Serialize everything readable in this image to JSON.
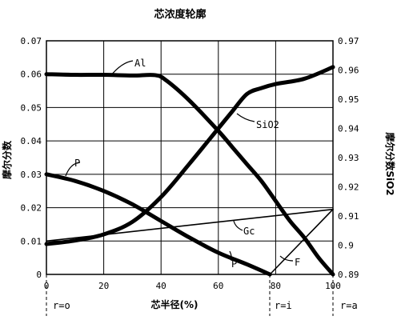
{
  "chart_data": {
    "type": "line",
    "title": "芯浓度轮廓",
    "xlabel": "芯半径(%)",
    "ylabel": "摩尔分数",
    "ylabel_right": "摩尔分数SiO2",
    "xlim": [
      0,
      100
    ],
    "ylim": [
      0,
      0.07
    ],
    "ylim_right": [
      0.89,
      0.97
    ],
    "x_ticks": [
      "0",
      "20",
      "40",
      "60",
      "80",
      "100"
    ],
    "y_ticks": [
      "0",
      "0.01",
      "0.02",
      "0.03",
      "0.04",
      "0.05",
      "0.06",
      "0.07"
    ],
    "y_ticks_right": [
      "0.89",
      "0.9",
      "0.91",
      "0.92",
      "0.93",
      "0.94",
      "0.95",
      "0.96",
      "0.97"
    ],
    "grid": true,
    "series": [
      {
        "name": "Al",
        "axis": "left",
        "stroke": "thick",
        "points": [
          [
            0,
            0.06
          ],
          [
            10,
            0.0598
          ],
          [
            20,
            0.0598
          ],
          [
            30,
            0.0596
          ],
          [
            38,
            0.0597
          ],
          [
            42,
            0.058
          ],
          [
            50,
            0.052
          ],
          [
            60,
            0.043
          ],
          [
            65,
            0.038
          ],
          [
            70,
            0.033
          ],
          [
            75,
            0.028
          ],
          [
            80,
            0.022
          ],
          [
            85,
            0.016
          ],
          [
            90,
            0.011
          ],
          [
            95,
            0.005
          ],
          [
            100,
            0.0
          ]
        ]
      },
      {
        "name": "SiO2",
        "axis": "right",
        "stroke": "thick",
        "points": [
          [
            0,
            0.9004
          ],
          [
            10,
            0.9016
          ],
          [
            20,
            0.9037
          ],
          [
            30,
            0.908
          ],
          [
            40,
            0.9165
          ],
          [
            50,
            0.928
          ],
          [
            60,
            0.94
          ],
          [
            65,
            0.946
          ],
          [
            70,
            0.9518
          ],
          [
            75,
            0.9538
          ],
          [
            80,
            0.9552
          ],
          [
            90,
            0.957
          ],
          [
            100,
            0.961
          ]
        ]
      },
      {
        "name": "P",
        "axis": "left",
        "stroke": "thick",
        "points": [
          [
            0,
            0.03
          ],
          [
            10,
            0.028
          ],
          [
            20,
            0.025
          ],
          [
            30,
            0.021
          ],
          [
            40,
            0.016
          ],
          [
            50,
            0.011
          ],
          [
            60,
            0.0065
          ],
          [
            70,
            0.003
          ],
          [
            78,
            0.0
          ]
        ]
      },
      {
        "name": "Ge",
        "axis": "left",
        "stroke": "thin",
        "points": [
          [
            0,
            0.01
          ],
          [
            100,
            0.0195
          ]
        ]
      },
      {
        "name": "F",
        "axis": "left",
        "stroke": "thin",
        "points": [
          [
            78,
            0.0
          ],
          [
            100,
            0.0195
          ]
        ]
      }
    ],
    "annotations": {
      "al": "Al",
      "sio2": "SiO2",
      "p": "P",
      "gc": "Gc",
      "p_bottom": "P",
      "f": "F"
    },
    "region_labels": [
      "r=o",
      "r=i",
      "r=a"
    ]
  }
}
